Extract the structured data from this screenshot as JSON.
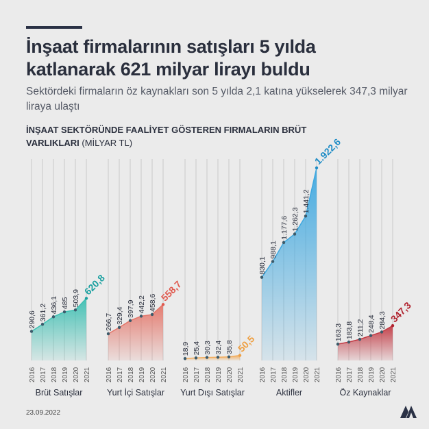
{
  "header": {
    "title": "İnşaat firmalarının satışları 5 yılda katlanarak 621 milyar lirayı buldu",
    "subtitle": "Sektördeki firmaların öz kaynakları son 5 yılda 2,1 katına yükselerek 347,3 milyar liraya ulaştı",
    "section_title": "İNŞAAT SEKTÖRÜNDE FAALİYET GÖSTEREN FIRMALARIN BRÜT VARLIKLARI",
    "section_unit": "(MİLYAR TL)"
  },
  "footer": {
    "date": "23.09.2022",
    "logo": "AA"
  },
  "chart_data": {
    "type": "area",
    "unit": "MİLYAR TL",
    "x": [
      "2016",
      "2017",
      "2018",
      "2019",
      "2020",
      "2021"
    ],
    "series": [
      {
        "name": "Brüt Satışlar",
        "values": [
          290.6,
          361.2,
          436.1,
          485,
          503.9,
          620.8
        ],
        "labels": [
          "290,6",
          "361,2",
          "436,1",
          "485",
          "503,9",
          "620,8"
        ],
        "color": "#3dbfb2",
        "label_color": "#1aa0a0"
      },
      {
        "name": "Yurt İçi Satışlar",
        "values": [
          266.7,
          329.4,
          397.9,
          442.2,
          458.6,
          558.7
        ],
        "labels": [
          "266,7",
          "329,4",
          "397,9",
          "442,2",
          "458,6",
          "558,7"
        ],
        "color": "#e4766a",
        "label_color": "#e0594e"
      },
      {
        "name": "Yurt Dışı Satışlar",
        "values": [
          18.9,
          25.4,
          30.3,
          32.4,
          35.8,
          50.5
        ],
        "labels": [
          "18,9",
          "25,4",
          "30,3",
          "32,4",
          "35,8",
          "50,5"
        ],
        "color": "#f2ad5e",
        "label_color": "#eea044"
      },
      {
        "name": "Aktifler",
        "values": [
          830.1,
          988.1,
          1177.6,
          1262.3,
          1441.2,
          1922.6
        ],
        "labels": [
          "830,1",
          "988,1",
          "1.177,6",
          "1.262,3",
          "1.441,2",
          "1.922,6"
        ],
        "color": "#3ea8e0",
        "label_color": "#1d8cc6"
      },
      {
        "name": "Öz Kaynaklar",
        "values": [
          163.3,
          183.8,
          211.2,
          248.4,
          284.3,
          347.3
        ],
        "labels": [
          "163,3",
          "183,8",
          "211,2",
          "248,4",
          "284,3",
          "347,3"
        ],
        "color": "#c23a44",
        "label_color": "#b0222e"
      }
    ],
    "grid": true
  }
}
